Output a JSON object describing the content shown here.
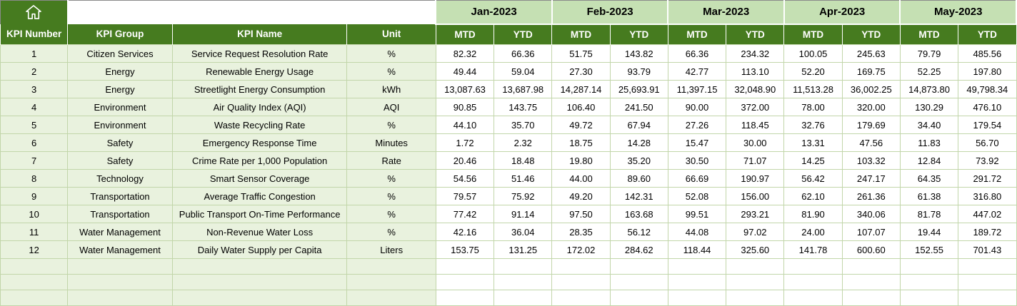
{
  "table": {
    "corner_icon": "home-icon",
    "months": [
      "Jan-2023",
      "Feb-2023",
      "Mar-2023",
      "Apr-2023",
      "May-2023"
    ],
    "sub_headers": [
      "MTD",
      "YTD"
    ],
    "columns": [
      "KPI Number",
      "KPI Group",
      "KPI Name",
      "Unit"
    ],
    "rows": [
      {
        "number": "1",
        "group": "Citizen Services",
        "name": "Service Request Resolution Rate",
        "unit": "%",
        "values": [
          "82.32",
          "66.36",
          "51.75",
          "143.82",
          "66.36",
          "234.32",
          "100.05",
          "245.63",
          "79.79",
          "485.56"
        ]
      },
      {
        "number": "2",
        "group": "Energy",
        "name": "Renewable Energy Usage",
        "unit": "%",
        "values": [
          "49.44",
          "59.04",
          "27.30",
          "93.79",
          "42.77",
          "113.10",
          "52.20",
          "169.75",
          "52.25",
          "197.80"
        ]
      },
      {
        "number": "3",
        "group": "Energy",
        "name": "Streetlight Energy Consumption",
        "unit": "kWh",
        "values": [
          "13,087.63",
          "13,687.98",
          "14,287.14",
          "25,693.91",
          "11,397.15",
          "32,048.90",
          "11,513.28",
          "36,002.25",
          "14,873.80",
          "49,798.34"
        ]
      },
      {
        "number": "4",
        "group": "Environment",
        "name": "Air Quality Index (AQI)",
        "unit": "AQI",
        "values": [
          "90.85",
          "143.75",
          "106.40",
          "241.50",
          "90.00",
          "372.00",
          "78.00",
          "320.00",
          "130.29",
          "476.10"
        ]
      },
      {
        "number": "5",
        "group": "Environment",
        "name": "Waste Recycling Rate",
        "unit": "%",
        "values": [
          "44.10",
          "35.70",
          "49.72",
          "67.94",
          "27.26",
          "118.45",
          "32.76",
          "179.69",
          "34.40",
          "179.54"
        ]
      },
      {
        "number": "6",
        "group": "Safety",
        "name": "Emergency Response Time",
        "unit": "Minutes",
        "values": [
          "1.72",
          "2.32",
          "18.75",
          "14.28",
          "15.47",
          "30.00",
          "13.31",
          "47.56",
          "11.83",
          "56.70"
        ]
      },
      {
        "number": "7",
        "group": "Safety",
        "name": "Crime Rate per 1,000 Population",
        "unit": "Rate",
        "values": [
          "20.46",
          "18.48",
          "19.80",
          "35.20",
          "30.50",
          "71.07",
          "14.25",
          "103.32",
          "12.84",
          "73.92"
        ]
      },
      {
        "number": "8",
        "group": "Technology",
        "name": "Smart Sensor Coverage",
        "unit": "%",
        "values": [
          "54.56",
          "51.46",
          "44.00",
          "89.60",
          "66.69",
          "190.97",
          "56.42",
          "247.17",
          "64.35",
          "291.72"
        ]
      },
      {
        "number": "9",
        "group": "Transportation",
        "name": "Average Traffic Congestion",
        "unit": "%",
        "values": [
          "79.57",
          "75.92",
          "49.20",
          "142.31",
          "52.08",
          "156.00",
          "62.10",
          "261.36",
          "61.38",
          "316.80"
        ]
      },
      {
        "number": "10",
        "group": "Transportation",
        "name": "Public Transport On-Time Performance",
        "unit": "%",
        "values": [
          "77.42",
          "91.14",
          "97.50",
          "163.68",
          "99.51",
          "293.21",
          "81.90",
          "340.06",
          "81.78",
          "447.02"
        ]
      },
      {
        "number": "11",
        "group": "Water Management",
        "name": "Non-Revenue Water Loss",
        "unit": "%",
        "values": [
          "42.16",
          "36.04",
          "28.35",
          "56.12",
          "44.08",
          "97.02",
          "24.00",
          "107.07",
          "19.44",
          "189.72"
        ]
      },
      {
        "number": "12",
        "group": "Water Management",
        "name": "Daily Water Supply per Capita",
        "unit": "Liters",
        "values": [
          "153.75",
          "131.25",
          "172.02",
          "284.62",
          "118.44",
          "325.60",
          "141.78",
          "600.60",
          "152.55",
          "701.43"
        ]
      }
    ],
    "empty_row_count": 3
  },
  "colors": {
    "header_dark_green": "#467b1f",
    "month_light_green": "#c5e0b3",
    "row_light_green": "#e9f2de",
    "grid_line": "#c2d6aa"
  }
}
